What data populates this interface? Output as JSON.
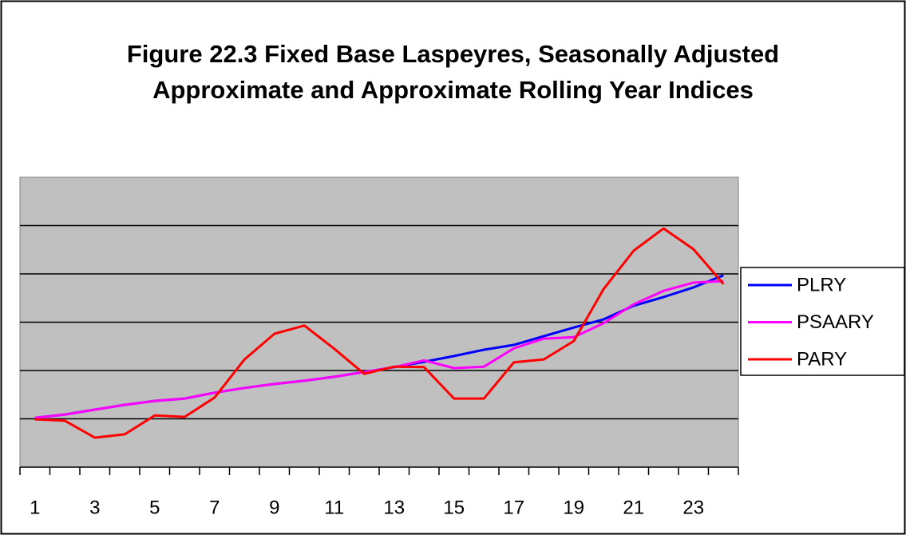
{
  "chart_data": {
    "type": "line",
    "title": "Figure 22.3 Fixed Base Laspeyres, Seasonally Adjusted Approximate and Approximate Rolling Year Indices",
    "categories": [
      "1",
      null,
      "3",
      null,
      "5",
      null,
      "7",
      null,
      "9",
      null,
      "11",
      null,
      "13",
      null,
      "15",
      null,
      "17",
      null,
      "19",
      null,
      "21",
      null,
      "23",
      null
    ],
    "series": [
      {
        "name": "PLRY",
        "color": "#0000ff",
        "values": [
          1.02,
          1.09,
          1.19,
          1.29,
          1.37,
          1.42,
          1.54,
          1.64,
          1.72,
          1.79,
          1.87,
          1.97,
          2.07,
          2.18,
          2.3,
          2.43,
          2.53,
          2.71,
          2.89,
          3.06,
          3.34,
          3.52,
          3.72,
          3.97
        ]
      },
      {
        "name": "PSAARY",
        "color": "#ff00ff",
        "values": [
          1.02,
          1.09,
          1.19,
          1.29,
          1.37,
          1.42,
          1.54,
          1.64,
          1.72,
          1.79,
          1.87,
          1.97,
          2.07,
          2.21,
          2.05,
          2.08,
          2.46,
          2.66,
          2.69,
          2.98,
          3.37,
          3.65,
          3.82,
          3.85
        ]
      },
      {
        "name": "PARY",
        "color": "#ff0000",
        "values": [
          0.99,
          0.96,
          0.61,
          0.68,
          1.07,
          1.04,
          1.44,
          2.23,
          2.76,
          2.93,
          2.45,
          1.93,
          2.08,
          2.07,
          1.42,
          1.42,
          2.17,
          2.23,
          2.61,
          3.69,
          4.48,
          4.94,
          4.51,
          3.79
        ]
      }
    ],
    "ylim": [
      0,
      6
    ],
    "yticks": [
      1,
      2,
      3,
      4,
      5
    ],
    "grid": true,
    "legend": "right"
  }
}
